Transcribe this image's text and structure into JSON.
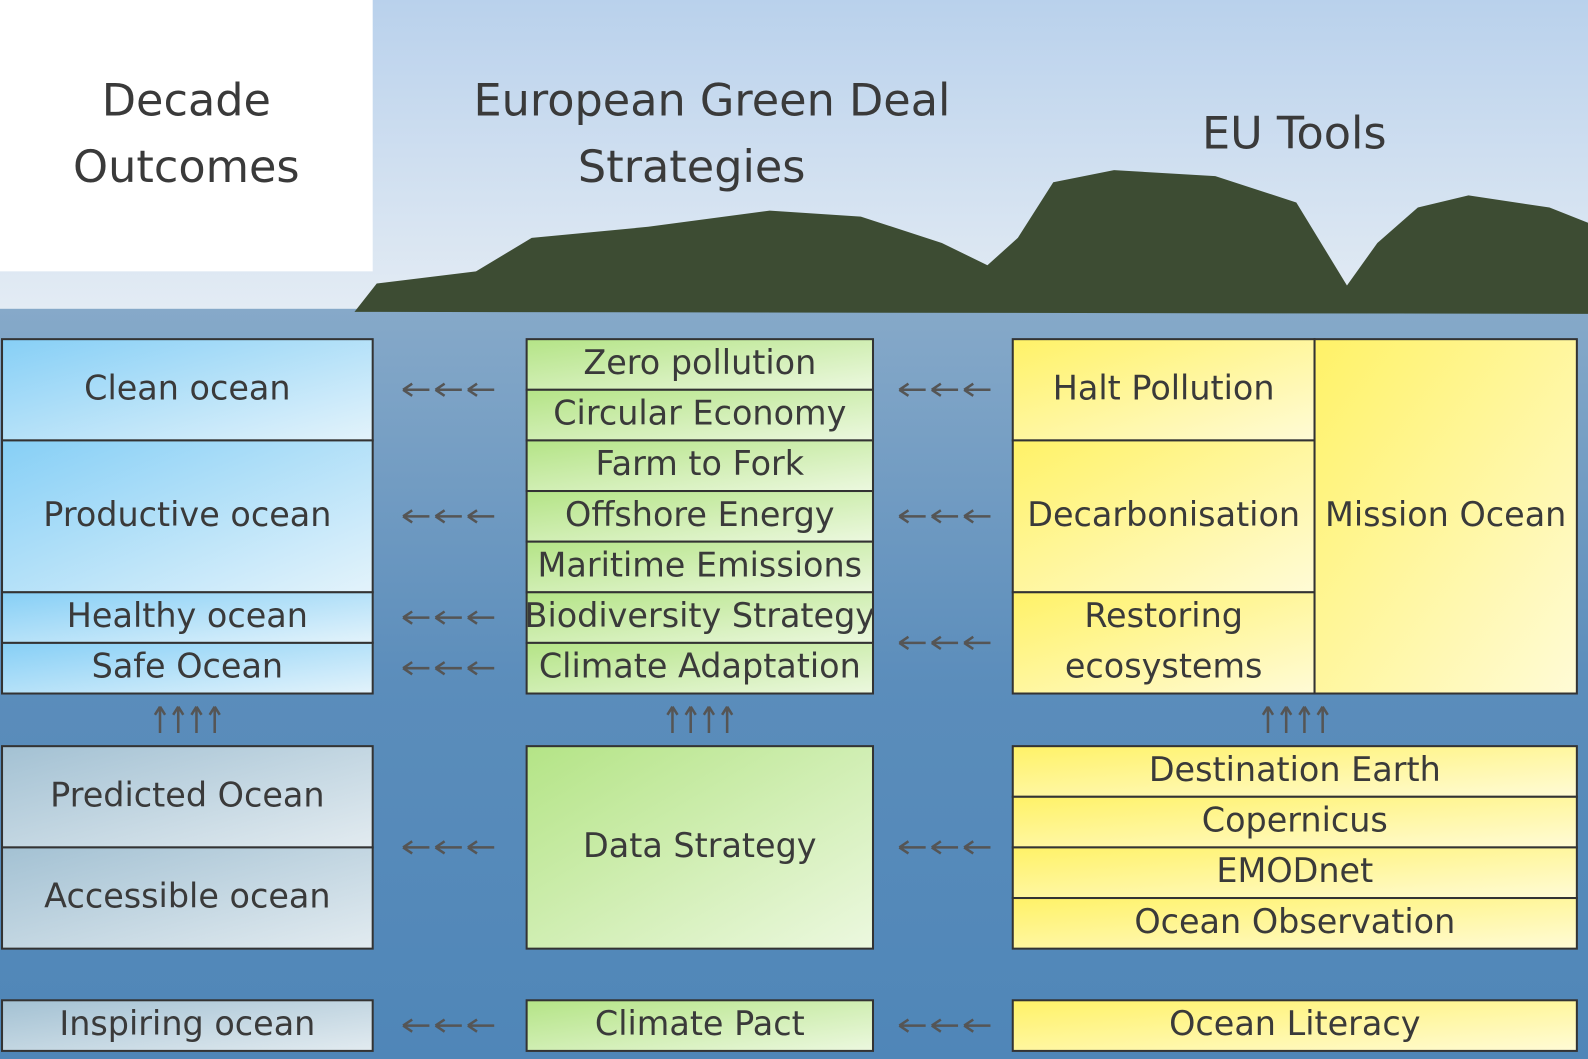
{
  "headers": {
    "outcomes": [
      "Decade",
      "Outcomes"
    ],
    "strategies": [
      "European Green Deal",
      "Strategies"
    ],
    "tools": "EU Tools"
  },
  "outcomes": [
    "Clean ocean",
    "Productive ocean",
    "Healthy ocean",
    "Safe Ocean",
    "Predicted Ocean",
    "Accessible ocean",
    "Inspiring ocean"
  ],
  "strategies": [
    "Zero pollution",
    "Circular Economy",
    "Farm to Fork",
    "Offshore Energy",
    "Maritime Emissions",
    "Biodiversity Strategy",
    "Climate Adaptation",
    "Data Strategy",
    "Climate Pact"
  ],
  "tools": {
    "left": [
      "Halt Pollution",
      "Decarbonisation",
      [
        "Restoring",
        "ecosystems"
      ]
    ],
    "mission": "Mission Ocean",
    "data": [
      "Destination Earth",
      "Copernicus",
      "EMODnet",
      "Ocean Observation"
    ],
    "literacy": "Ocean Literacy"
  }
}
